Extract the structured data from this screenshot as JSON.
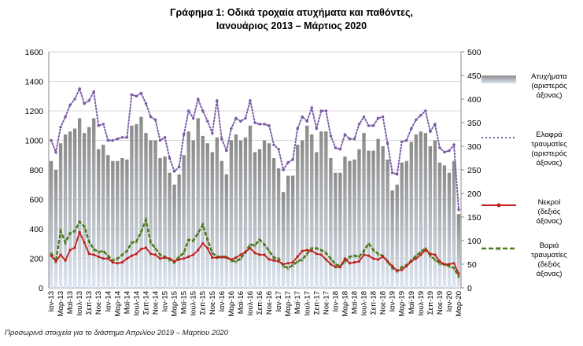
{
  "title_line1": "Γράφημα 1: Οδικά τροχαία ατυχήματα και παθόντες,",
  "title_line2": "Ιανουάριος 2013 – Μάρτιος 2020",
  "footnote": "Προσωρινά στοιχεία για το διάστημα Απριλίου 2019 – Μαρτίου 2020",
  "colors": {
    "bar_top": "#8a8a8a",
    "bar_bottom": "#dde6f2",
    "light_injured": "#7b5ba8",
    "deaths": "#c0201c",
    "serious": "#4d7a1d",
    "grid": "#d9d9d9"
  },
  "chart_data": {
    "type": "bar+line",
    "left_axis": {
      "ylim": [
        0,
        1600
      ],
      "ticks": [
        "0",
        "200",
        "400",
        "600",
        "800",
        "1000",
        "1200",
        "1400",
        "1600"
      ]
    },
    "right_axis": {
      "ylim": [
        0,
        500
      ],
      "ticks": [
        "0",
        "50",
        "100",
        "150",
        "200",
        "250",
        "300",
        "350",
        "400",
        "450",
        "500"
      ]
    },
    "grid": true,
    "legend_position": "right",
    "x_tick_labels": [
      "Ιαν-13",
      "Μαρ-13",
      "Μαϊ-13",
      "Ιουλ-13",
      "Σεπ-13",
      "Νοε-13",
      "Ιαν-14",
      "Μαρ-14",
      "Μαϊ-14",
      "Ιουλ-14",
      "Σεπ-14",
      "Νοε-14",
      "Ιαν-15",
      "Μαρ-15",
      "Μαϊ-15",
      "Ιουλ-15",
      "Σεπ-15",
      "Νοε-15",
      "Ιαν-16",
      "Μαρ-16",
      "Μαϊ-16",
      "Ιουλ-16",
      "Σεπ-16",
      "Νοε-16",
      "Ιαν-17",
      "Μαρ-17",
      "Μαϊ-17",
      "Ιουλ-17",
      "Σεπ-17",
      "Νοε-17",
      "Ιαν-18",
      "Μαρ-18",
      "Μαϊ-18",
      "Ιουλ-18",
      "Σεπ-18",
      "Νοε-18",
      "Ιαν-19",
      "Μαρ-19",
      "Μαϊ-19",
      "Ιουλ-19",
      "Σεπ-19",
      "Νοε-19",
      "Ιαν-20",
      "Μαρ-20"
    ],
    "series": [
      {
        "name": "Ατυχήματα (αριστερός άξονας)",
        "type": "bar",
        "axis": "left",
        "values": [
          860,
          800,
          980,
          1040,
          1060,
          1080,
          1150,
          1050,
          1090,
          1150,
          940,
          970,
          900,
          860,
          860,
          880,
          870,
          1100,
          1110,
          1160,
          1050,
          1000,
          1000,
          880,
          890,
          780,
          700,
          770,
          900,
          1060,
          1000,
          1150,
          1030,
          980,
          920,
          1020,
          860,
          770,
          1000,
          1040,
          1000,
          1020,
          1100,
          920,
          940,
          1000,
          980,
          880,
          810,
          650,
          760,
          760,
          970,
          1000,
          1100,
          1040,
          920,
          1060,
          1060,
          880,
          780,
          780,
          890,
          860,
          870,
          940,
          1050,
          930,
          930,
          1010,
          960,
          870,
          660,
          700,
          850,
          860,
          990,
          1040,
          1060,
          1050,
          960,
          1000,
          850,
          830,
          780,
          860,
          500
        ]
      },
      {
        "name": "Ελαφρά τραυματίες (αριστερός άξονας)",
        "type": "line",
        "axis": "left",
        "values": [
          1000,
          920,
          1090,
          1160,
          1240,
          1280,
          1350,
          1250,
          1270,
          1330,
          1100,
          1110,
          1000,
          1000,
          1010,
          1020,
          1020,
          1310,
          1300,
          1320,
          1250,
          1160,
          1140,
          1000,
          1020,
          880,
          790,
          820,
          1040,
          1200,
          1150,
          1280,
          1200,
          1130,
          1050,
          1270,
          1010,
          930,
          1080,
          1150,
          1130,
          1150,
          1270,
          1120,
          1110,
          1110,
          1100,
          970,
          940,
          800,
          850,
          870,
          1080,
          1160,
          1130,
          1220,
          1080,
          1200,
          1200,
          1030,
          950,
          940,
          1040,
          1010,
          1010,
          1110,
          1160,
          1100,
          1100,
          1150,
          1160,
          980,
          780,
          770,
          990,
          1000,
          1080,
          1140,
          1170,
          1200,
          1060,
          1110,
          950,
          920,
          930,
          970,
          530
        ]
      },
      {
        "name": "Νεκροί (δεξιός άξονας)",
        "type": "line",
        "axis": "right",
        "values": [
          68,
          56,
          70,
          58,
          80,
          85,
          118,
          96,
          72,
          70,
          66,
          62,
          62,
          54,
          52,
          54,
          62,
          68,
          72,
          82,
          85,
          72,
          70,
          62,
          64,
          62,
          56,
          60,
          62,
          66,
          70,
          80,
          94,
          84,
          64,
          64,
          65,
          64,
          60,
          64,
          70,
          76,
          84,
          74,
          70,
          70,
          60,
          58,
          56,
          50,
          52,
          54,
          66,
          78,
          80,
          78,
          72,
          70,
          60,
          50,
          44,
          44,
          62,
          52,
          54,
          56,
          70,
          68,
          62,
          60,
          66,
          56,
          46,
          36,
          38,
          46,
          56,
          62,
          70,
          80,
          72,
          70,
          56,
          50,
          50,
          52,
          30
        ]
      },
      {
        "name": "Βαριά τραυματίες (δεξιός άξονας)",
        "type": "line",
        "axis": "right",
        "values": [
          74,
          56,
          120,
          96,
          116,
          120,
          140,
          130,
          98,
          82,
          76,
          78,
          68,
          58,
          62,
          70,
          78,
          96,
          98,
          118,
          144,
          96,
          84,
          70,
          66,
          60,
          54,
          66,
          74,
          102,
          100,
          116,
          134,
          102,
          74,
          66,
          66,
          66,
          58,
          56,
          62,
          76,
          92,
          90,
          102,
          92,
          78,
          64,
          62,
          46,
          42,
          48,
          56,
          60,
          72,
          84,
          84,
          80,
          74,
          62,
          50,
          46,
          56,
          66,
          68,
          66,
          78,
          94,
          80,
          72,
          68,
          56,
          42,
          36,
          44,
          48,
          58,
          68,
          76,
          84,
          68,
          60,
          52,
          50,
          46,
          42,
          24
        ]
      }
    ]
  },
  "legend": [
    {
      "lines": [
        "Ατυχήματα",
        "(αριστερός",
        "άξονας)"
      ]
    },
    {
      "lines": [
        "Ελαφρά",
        "τραυματίες",
        "(αριστερός",
        "άξονας)"
      ]
    },
    {
      "lines": [
        "Νεκροί",
        "(δεξιός",
        "άξονας)"
      ]
    },
    {
      "lines": [
        "Βαριά",
        "τραυματίες",
        "(δεξιός",
        "άξονας)"
      ]
    }
  ]
}
